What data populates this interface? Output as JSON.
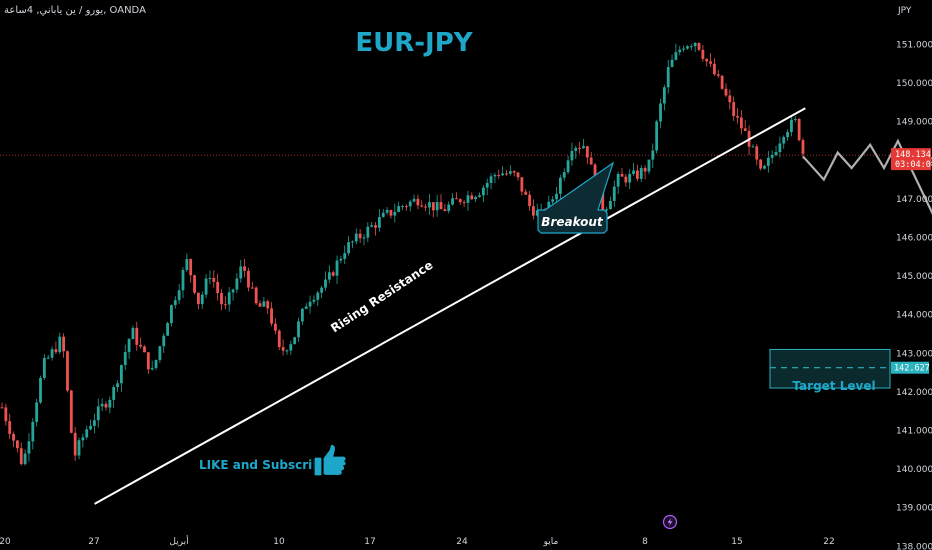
{
  "symbol_label": "يورو / ين ياباني, 4ساعة, OANDA",
  "title": "EUR-JPY",
  "currency_label": "JPY",
  "colors": {
    "background": "#000000",
    "up_candle": "#26a69a",
    "down_candle": "#ef5350",
    "accent": "#1fa7c9",
    "current_price": "#e53935",
    "target_box": "#2bb3c0",
    "projection": "#b0b0b0"
  },
  "annotations": {
    "rising_resistance": "Rising Resistance",
    "breakout": "Breakout",
    "like_subscribe": "LIKE and Subscribe",
    "target_level": "Target Level"
  },
  "icons": [
    "thumbs-up-icon",
    "lightning-icon"
  ],
  "chart_data": {
    "type": "candlestick",
    "symbol": "EURJPY",
    "timeframe": "4h",
    "y_ticks": [
      "151.000",
      "150.000",
      "149.000",
      "148.000",
      "147.000",
      "146.000",
      "145.000",
      "144.000",
      "143.000",
      "142.000",
      "141.000",
      "140.000",
      "139.000",
      "138.000"
    ],
    "ylim": [
      137.7,
      151.6
    ],
    "x_ticks": [
      "20",
      "27",
      "أبريل",
      "10",
      "17",
      "24",
      "مايو",
      "8",
      "15",
      "22"
    ],
    "last_price": "148.134",
    "countdown": "03:04:04",
    "target_price": "142.627",
    "target_zone": [
      142.1,
      143.1
    ],
    "trendline": {
      "from": [
        2.0,
        139.1
      ],
      "to": [
        17.35,
        149.35
      ]
    },
    "projection_path": [
      [
        17.3,
        148.1
      ],
      [
        17.75,
        147.5
      ],
      [
        18.05,
        148.2
      ],
      [
        18.35,
        147.8
      ],
      [
        18.75,
        148.4
      ],
      [
        19.05,
        147.8
      ],
      [
        19.35,
        148.5
      ],
      [
        21.3,
        143.6
      ]
    ],
    "price_path": [
      [
        0.0,
        141.6
      ],
      [
        0.45,
        140.1
      ],
      [
        0.9,
        142.7
      ],
      [
        1.3,
        143.4
      ],
      [
        1.55,
        140.3
      ],
      [
        1.85,
        141.1
      ],
      [
        2.4,
        142.0
      ],
      [
        2.8,
        143.6
      ],
      [
        3.25,
        142.5
      ],
      [
        3.6,
        144.0
      ],
      [
        4.0,
        145.4
      ],
      [
        4.25,
        144.3
      ],
      [
        4.5,
        145.1
      ],
      [
        4.8,
        144.1
      ],
      [
        5.2,
        145.3
      ],
      [
        5.5,
        144.2
      ],
      [
        5.75,
        144.2
      ],
      [
        6.0,
        143.0
      ],
      [
        6.3,
        143.4
      ],
      [
        6.6,
        144.4
      ],
      [
        7.0,
        144.8
      ],
      [
        7.4,
        145.7
      ],
      [
        7.8,
        146.1
      ],
      [
        8.2,
        146.5
      ],
      [
        8.6,
        146.8
      ],
      [
        9.0,
        147.0
      ],
      [
        9.5,
        146.7
      ],
      [
        9.9,
        147.0
      ],
      [
        10.3,
        147.2
      ],
      [
        10.7,
        147.7
      ],
      [
        11.1,
        147.6
      ],
      [
        11.4,
        146.8
      ],
      [
        11.7,
        146.5
      ],
      [
        12.0,
        147.3
      ],
      [
        12.3,
        148.4
      ],
      [
        12.6,
        148.4
      ],
      [
        12.8,
        147.4
      ],
      [
        13.0,
        146.7
      ],
      [
        13.3,
        147.5
      ],
      [
        13.7,
        147.6
      ],
      [
        14.0,
        147.9
      ],
      [
        14.15,
        149.0
      ],
      [
        14.4,
        150.4
      ],
      [
        14.7,
        151.0
      ],
      [
        15.0,
        151.1
      ],
      [
        15.2,
        150.6
      ],
      [
        15.5,
        150.0
      ],
      [
        15.8,
        149.2
      ],
      [
        16.1,
        148.6
      ],
      [
        16.4,
        147.6
      ],
      [
        16.7,
        148.3
      ],
      [
        16.9,
        148.8
      ],
      [
        17.15,
        149.0
      ],
      [
        17.3,
        148.2
      ]
    ]
  }
}
